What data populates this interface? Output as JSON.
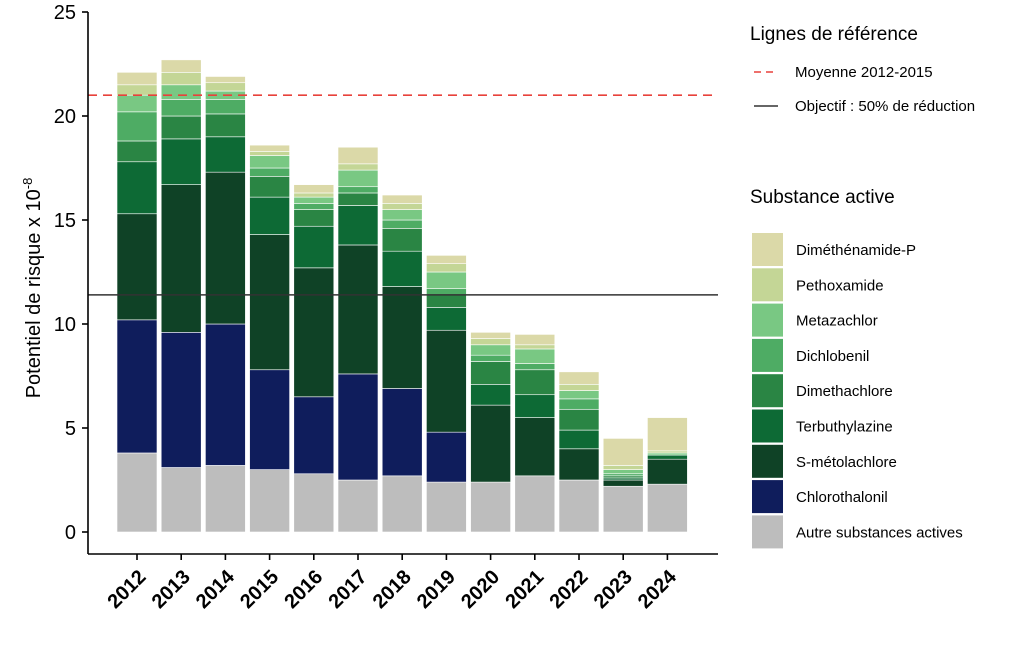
{
  "chart_data": {
    "type": "bar",
    "stacked": true,
    "ylabel": "Potentiel de risque x 10",
    "ylabel_exponent": "-8",
    "ylim": [
      0,
      25
    ],
    "yticks": [
      0,
      5,
      10,
      15,
      20,
      25
    ],
    "categories": [
      "2012",
      "2013",
      "2014",
      "2015",
      "2016",
      "2017",
      "2018",
      "2019",
      "2020",
      "2021",
      "2022",
      "2023",
      "2024"
    ],
    "series": [
      {
        "name": "Autre substances actives",
        "color": "#bdbdbd",
        "values": [
          3.8,
          3.1,
          3.2,
          3.0,
          2.8,
          2.5,
          2.7,
          2.4,
          2.4,
          2.7,
          2.5,
          2.2,
          2.3
        ]
      },
      {
        "name": "Chlorothalonil",
        "color": "#0f1d5c",
        "values": [
          6.4,
          6.5,
          6.8,
          4.8,
          3.7,
          5.1,
          4.2,
          2.4,
          0,
          0,
          0,
          0,
          0
        ]
      },
      {
        "name": "S-métolachlore",
        "color": "#0f4226",
        "values": [
          5.1,
          7.1,
          7.3,
          6.5,
          6.2,
          6.2,
          4.9,
          4.9,
          3.7,
          2.8,
          1.5,
          0.3,
          1.2
        ]
      },
      {
        "name": "Terbuthylazine",
        "color": "#0d6a35",
        "values": [
          2.5,
          2.2,
          1.7,
          1.8,
          2.0,
          1.9,
          1.7,
          1.1,
          1.0,
          1.1,
          0.9,
          0.1,
          0.2
        ]
      },
      {
        "name": "Dimethachlore",
        "color": "#2a8544",
        "values": [
          1.0,
          1.1,
          1.1,
          1.0,
          0.8,
          0.6,
          1.1,
          0.6,
          1.1,
          1.2,
          1.0,
          0.1,
          0
        ]
      },
      {
        "name": "Dichlobenil",
        "color": "#4eac64",
        "values": [
          1.4,
          0.8,
          0.7,
          0.4,
          0.3,
          0.3,
          0.4,
          0.3,
          0.3,
          0.3,
          0.5,
          0.1,
          0
        ]
      },
      {
        "name": "Metazachlor",
        "color": "#79c883",
        "values": [
          0.8,
          0.7,
          0.4,
          0.6,
          0.3,
          0.8,
          0.5,
          0.8,
          0.5,
          0.7,
          0.4,
          0.2,
          0.1
        ]
      },
      {
        "name": "Pethoxamide",
        "color": "#c4d696",
        "values": [
          0.5,
          0.6,
          0.4,
          0.2,
          0.2,
          0.3,
          0.3,
          0.4,
          0.3,
          0.2,
          0.3,
          0.2,
          0.1
        ]
      },
      {
        "name": "Diméthénamide-P",
        "color": "#dbd9a8",
        "values": [
          0.6,
          0.6,
          0.3,
          0.3,
          0.4,
          0.8,
          0.4,
          0.4,
          0.3,
          0.5,
          0.6,
          1.3,
          1.6
        ]
      }
    ],
    "reference_lines": [
      {
        "name": "Moyenne 2012-2015",
        "value": 21.0,
        "color": "#e8413b",
        "style": "dashed"
      },
      {
        "name": "Objectif : 50% de réduction",
        "value": 11.4,
        "color": "#333333",
        "style": "solid"
      }
    ],
    "legend": {
      "placement": "right",
      "reference_title": "Lignes de référence",
      "substance_title": "Substance active"
    }
  }
}
